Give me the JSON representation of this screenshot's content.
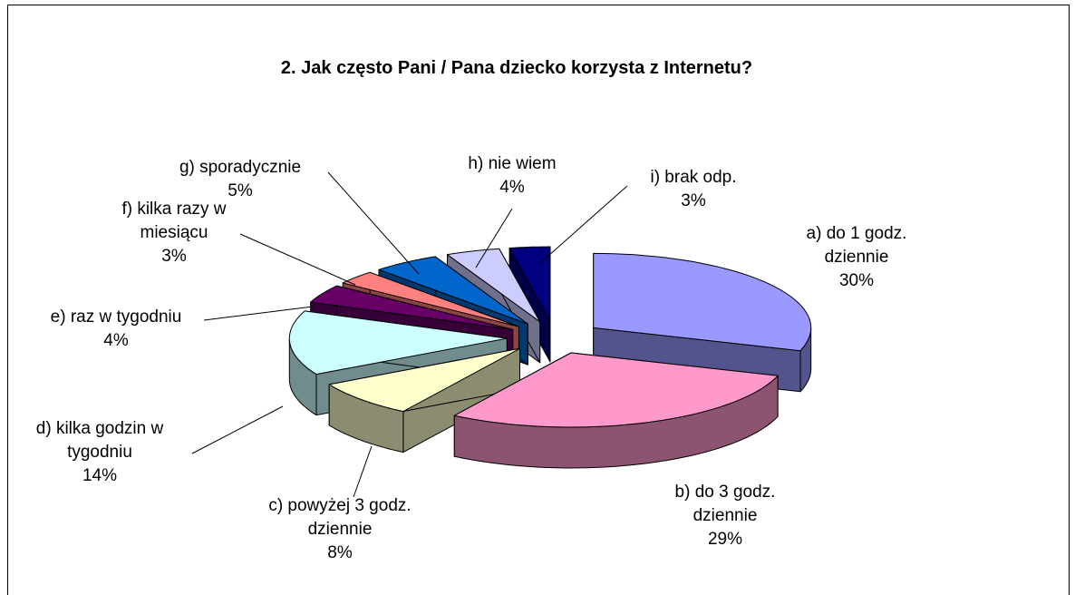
{
  "chart_data": {
    "type": "pie",
    "title": "2. Jak często Pani / Pana dziecko korzysta z Internetu?",
    "categories": [
      "a) do 1 godz. dziennie",
      "b) do 3 godz. dziennie",
      "c) powyżej 3 godz. dziennie",
      "d) kilka godzin w tygodniu",
      "e) raz w tygodniu",
      "f) kilka razy w miesiącu",
      "g) sporadycznie",
      "h) nie wiem",
      "i) brak odp."
    ],
    "values": [
      30,
      29,
      8,
      14,
      4,
      3,
      5,
      4,
      3
    ],
    "value_labels": [
      "30%",
      "29%",
      "8%",
      "14%",
      "4%",
      "3%",
      "5%",
      "4%",
      "3%"
    ],
    "colors": [
      "#9999ff",
      "#ff99cc",
      "#ffffcc",
      "#ccffff",
      "#660066",
      "#ff8080",
      "#0066cc",
      "#ccccff",
      "#000080"
    ]
  }
}
